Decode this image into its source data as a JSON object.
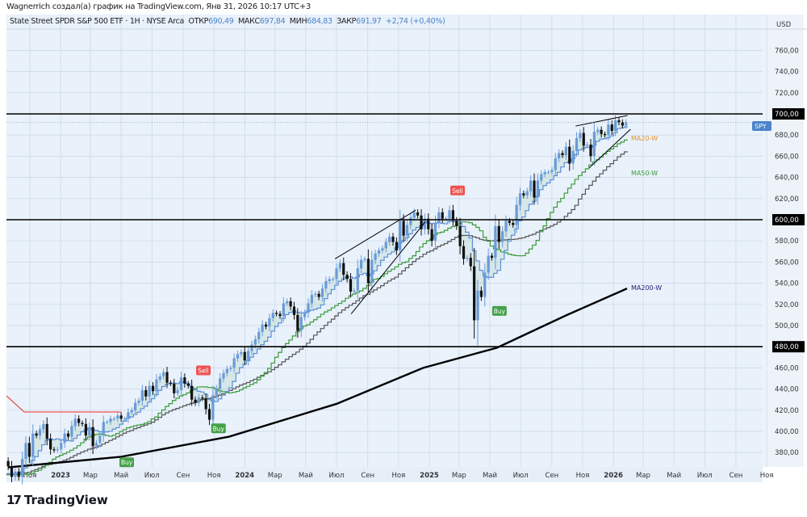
{
  "credit": "Wagnerrich создал(а) график на TradingView.com, Янв 31, 2026 10:17 UTC+3",
  "legend": {
    "name": "State Street SPDR S&P 500 ETF · 1H · NYSE Arca",
    "open_label": "ОТКР",
    "open": "690,49",
    "high_label": "МАКС",
    "high": "697,84",
    "low_label": "МИН",
    "low": "684,83",
    "close_label": "ЗАКР",
    "close": "691,97",
    "change": "+2,74 (+0,40%)"
  },
  "logo": "TradingView",
  "colors": {
    "up": "#6a9bd8",
    "down": "#111111",
    "background": "#e9f1fb",
    "grid": "#c9d6e6",
    "ma20": "#e8962e",
    "ma50": "#3b9b3b",
    "ma200": "#2a2070",
    "sell": "#ef5350",
    "buy": "#43a047",
    "spy_tag": "#4a84c9"
  },
  "chart_data": {
    "type": "candlestick",
    "currency": "USD",
    "symbol_tag": "SPY",
    "ylim": [
      370,
      775
    ],
    "y_ticks": [
      "380,00",
      "400,00",
      "420,00",
      "440,00",
      "460,00",
      "480,00",
      "500,00",
      "520,00",
      "540,00",
      "560,00",
      "580,00",
      "600,00",
      "620,00",
      "640,00",
      "660,00",
      "680,00",
      "700,00",
      "720,00",
      "740,00",
      "760,00"
    ],
    "x_ticks": [
      [
        "Ноя",
        "2022-11-01"
      ],
      [
        "2023",
        "2023-01-01"
      ],
      [
        "Мар",
        "2023-03-01"
      ],
      [
        "Май",
        "2023-05-01"
      ],
      [
        "Июл",
        "2023-07-01"
      ],
      [
        "Сен",
        "2023-09-01"
      ],
      [
        "Ноя",
        "2023-11-01"
      ],
      [
        "2024",
        "2024-01-01"
      ],
      [
        "Мар",
        "2024-03-01"
      ],
      [
        "Май",
        "2024-05-01"
      ],
      [
        "Июл",
        "2024-07-01"
      ],
      [
        "Сен",
        "2024-09-01"
      ],
      [
        "Ноя",
        "2024-11-01"
      ],
      [
        "2025",
        "2025-01-01"
      ],
      [
        "Мар",
        "2025-03-01"
      ],
      [
        "Май",
        "2025-05-01"
      ],
      [
        "Июл",
        "2025-07-01"
      ],
      [
        "Сен",
        "2025-09-01"
      ],
      [
        "Ноя",
        "2025-11-01"
      ],
      [
        "2026",
        "2026-01-01"
      ],
      [
        "Мар",
        "2026-03-01"
      ],
      [
        "Май",
        "2026-05-01"
      ],
      [
        "Июл",
        "2026-07-01"
      ],
      [
        "Сен",
        "2026-09-01"
      ],
      [
        "Ноя",
        "2026-11-01"
      ]
    ],
    "weekly_close": [
      367,
      357,
      362,
      357,
      374,
      389,
      376,
      398,
      396,
      402,
      407,
      393,
      383,
      382,
      383,
      389,
      398,
      395,
      405,
      412,
      408,
      407,
      396,
      404,
      386,
      389,
      396,
      409,
      409,
      412,
      412,
      415,
      412,
      412,
      418,
      420,
      427,
      429,
      439,
      433,
      443,
      438,
      449,
      452,
      456,
      446,
      445,
      436,
      439,
      451,
      445,
      443,
      430,
      427,
      432,
      431,
      421,
      411,
      434,
      440,
      450,
      455,
      459,
      460,
      469,
      473,
      475,
      467,
      476,
      482,
      487,
      494,
      501,
      499,
      507,
      512,
      511,
      509,
      521,
      523,
      518,
      510,
      495,
      508,
      512,
      521,
      529,
      530,
      527,
      535,
      542,
      544,
      544,
      554,
      559,
      548,
      544,
      532,
      533,
      554,
      562,
      563,
      540,
      562,
      568,
      571,
      573,
      579,
      584,
      579,
      571,
      599,
      585,
      595,
      602,
      607,
      604,
      591,
      601,
      591,
      580,
      597,
      607,
      601,
      601,
      609,
      599,
      594,
      575,
      563,
      564,
      556,
      505,
      533,
      527,
      550,
      566,
      564,
      594,
      579,
      589,
      599,
      597,
      595,
      614,
      625,
      623,
      627,
      637,
      621,
      637,
      643,
      645,
      645,
      647,
      658,
      663,
      661,
      669,
      653,
      665,
      677,
      682,
      670,
      671,
      660,
      683,
      685,
      681,
      680,
      690,
      684,
      694,
      692,
      689,
      692
    ],
    "first_week": "2022-09-19",
    "levels": [
      {
        "price": 700,
        "label": "700,00"
      },
      {
        "price": 600,
        "label": "600,00"
      },
      {
        "price": 480,
        "label": "480,00"
      }
    ],
    "ma200_w": [
      [
        "2022-09-19",
        366
      ],
      [
        "2023-05-01",
        376
      ],
      [
        "2023-12-01",
        395
      ],
      [
        "2024-07-01",
        426
      ],
      [
        "2024-12-20",
        460
      ],
      [
        "2025-05-15",
        479
      ],
      [
        "2025-10-01",
        510
      ],
      [
        "2026-01-28",
        535
      ]
    ],
    "trendlines": [
      [
        [
          "2024-06-28",
          563
        ],
        [
          "2024-12-05",
          609
        ]
      ],
      [
        [
          "2024-07-30",
          511
        ],
        [
          "2024-12-24",
          598
        ]
      ],
      [
        [
          "2025-10-18",
          688.5
        ],
        [
          "2026-01-29",
          698.5
        ]
      ],
      [
        [
          "2025-11-14",
          649
        ],
        [
          "2026-02-04",
          685.5
        ]
      ]
    ],
    "signals": [
      {
        "label": "Sell",
        "date": "2023-10-11",
        "price": 450
      },
      {
        "label": "Buy",
        "date": "2023-11-10",
        "price": 412
      },
      {
        "label": "Buy",
        "date": "2023-05-12",
        "price": 380
      },
      {
        "label": "Sell",
        "date": "2025-02-26",
        "price": 620
      },
      {
        "label": "Buy",
        "date": "2025-05-20",
        "price": 523
      }
    ],
    "ma_labels": {
      "ma20": "MA20-W",
      "ma50": "MA50-W",
      "ma200": "MA200-W"
    }
  }
}
